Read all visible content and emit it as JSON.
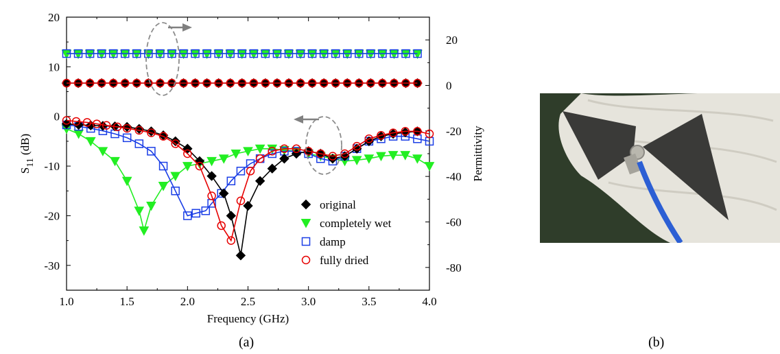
{
  "chart_data": {
    "type": "scatter",
    "caption": "(a)",
    "xlabel": "Frequency (GHz)",
    "ylabel_left": "S",
    "ylabel_left_sub": "11",
    "ylabel_left_unit": "(dB)",
    "ylabel_right": "Permittivity",
    "xlim": [
      1.0,
      4.0
    ],
    "ylim_left": [
      -35,
      20
    ],
    "ylim_right": [
      -90,
      30
    ],
    "x_ticks": [
      "1.0",
      "1.5",
      "2.0",
      "2.5",
      "3.0",
      "3.5",
      "4.0"
    ],
    "y_ticks_left": [
      "20",
      "10",
      "0",
      "-10",
      "-20",
      "-30"
    ],
    "y_ticks_right": [
      "20",
      "0",
      "-20",
      "-40",
      "-60",
      "-80"
    ],
    "legend_position": "bottom-right",
    "series": [
      {
        "name": "original",
        "marker": "diamond",
        "color": "#000000",
        "x": [
          1.0,
          1.1,
          1.2,
          1.3,
          1.4,
          1.5,
          1.6,
          1.7,
          1.8,
          1.9,
          2.0,
          2.1,
          2.2,
          2.3,
          2.36,
          2.44,
          2.5,
          2.6,
          2.7,
          2.8,
          2.9,
          3.0,
          3.1,
          3.2,
          3.3,
          3.4,
          3.5,
          3.6,
          3.7,
          3.8,
          3.9
        ],
        "y": [
          -1.5,
          -1.7,
          -1.8,
          -1.9,
          -2.0,
          -2.1,
          -2.5,
          -3.0,
          -3.8,
          -5.0,
          -6.5,
          -9.0,
          -12.0,
          -15.5,
          -20.0,
          -28.0,
          -18.0,
          -13.0,
          -10.5,
          -8.5,
          -7.5,
          -7.0,
          -7.5,
          -8.5,
          -8.0,
          -6.5,
          -5.0,
          -4.0,
          -3.5,
          -3.2,
          -3.0
        ],
        "permittivity": 1
      },
      {
        "name": "completely wet",
        "marker": "triangle-down",
        "color": "#22ee22",
        "x": [
          1.0,
          1.1,
          1.2,
          1.3,
          1.4,
          1.5,
          1.6,
          1.64,
          1.7,
          1.8,
          1.9,
          2.0,
          2.1,
          2.2,
          2.3,
          2.4,
          2.5,
          2.6,
          2.7,
          2.8,
          2.9,
          3.0,
          3.1,
          3.2,
          3.3,
          3.4,
          3.5,
          3.6,
          3.7,
          3.8,
          3.9,
          4.0
        ],
        "y": [
          -2.5,
          -3.5,
          -5.0,
          -7.0,
          -9.0,
          -13.0,
          -19.0,
          -23.0,
          -18.0,
          -14.0,
          -12.0,
          -10.0,
          -9.5,
          -9.0,
          -8.5,
          -7.5,
          -7.0,
          -6.5,
          -6.5,
          -6.8,
          -7.0,
          -7.5,
          -8.0,
          -8.5,
          -9.0,
          -8.8,
          -8.5,
          -8.0,
          -7.8,
          -7.8,
          -8.5,
          -10.0
        ],
        "permittivity": 14
      },
      {
        "name": "damp",
        "marker": "square",
        "color": "#1a3ee6",
        "x": [
          1.0,
          1.1,
          1.2,
          1.3,
          1.4,
          1.5,
          1.6,
          1.7,
          1.8,
          1.9,
          2.0,
          2.07,
          2.15,
          2.2,
          2.28,
          2.36,
          2.44,
          2.52,
          2.6,
          2.7,
          2.8,
          2.9,
          3.0,
          3.1,
          3.2,
          3.3,
          3.4,
          3.5,
          3.6,
          3.7,
          3.8,
          3.9,
          4.0
        ],
        "y": [
          -1.7,
          -2.0,
          -2.4,
          -2.9,
          -3.5,
          -4.3,
          -5.5,
          -7.0,
          -10.0,
          -15.0,
          -20.0,
          -19.5,
          -19.0,
          -17.5,
          -15.5,
          -13.0,
          -11.0,
          -9.5,
          -8.5,
          -7.5,
          -7.0,
          -7.0,
          -7.5,
          -8.5,
          -9.0,
          -8.0,
          -6.5,
          -5.0,
          -4.5,
          -4.0,
          -4.0,
          -4.5,
          -5.0
        ],
        "permittivity": 14
      },
      {
        "name": "fully dried",
        "marker": "circle",
        "color": "#e60000",
        "x": [
          1.0,
          1.08,
          1.17,
          1.25,
          1.33,
          1.42,
          1.5,
          1.6,
          1.7,
          1.8,
          1.9,
          2.0,
          2.1,
          2.2,
          2.28,
          2.36,
          2.44,
          2.52,
          2.6,
          2.7,
          2.8,
          2.9,
          3.0,
          3.1,
          3.2,
          3.3,
          3.4,
          3.5,
          3.6,
          3.7,
          3.8,
          3.9,
          4.0
        ],
        "y": [
          -0.8,
          -1.0,
          -1.2,
          -1.5,
          -1.8,
          -2.1,
          -2.4,
          -2.8,
          -3.3,
          -4.0,
          -5.5,
          -7.5,
          -10.0,
          -16.0,
          -22.0,
          -25.0,
          -17.0,
          -11.0,
          -8.5,
          -7.0,
          -6.5,
          -6.5,
          -7.0,
          -7.5,
          -8.0,
          -7.5,
          -6.0,
          -4.5,
          -3.8,
          -3.3,
          -3.0,
          -3.0,
          -3.5
        ],
        "permittivity": 1
      }
    ]
  },
  "photo": {
    "caption": "(b)",
    "background_color": "#2f3d2a",
    "fabric_color": "#e6e4dc",
    "antenna_color": "#3a3a38",
    "cable_color": "#2c5fd4"
  }
}
